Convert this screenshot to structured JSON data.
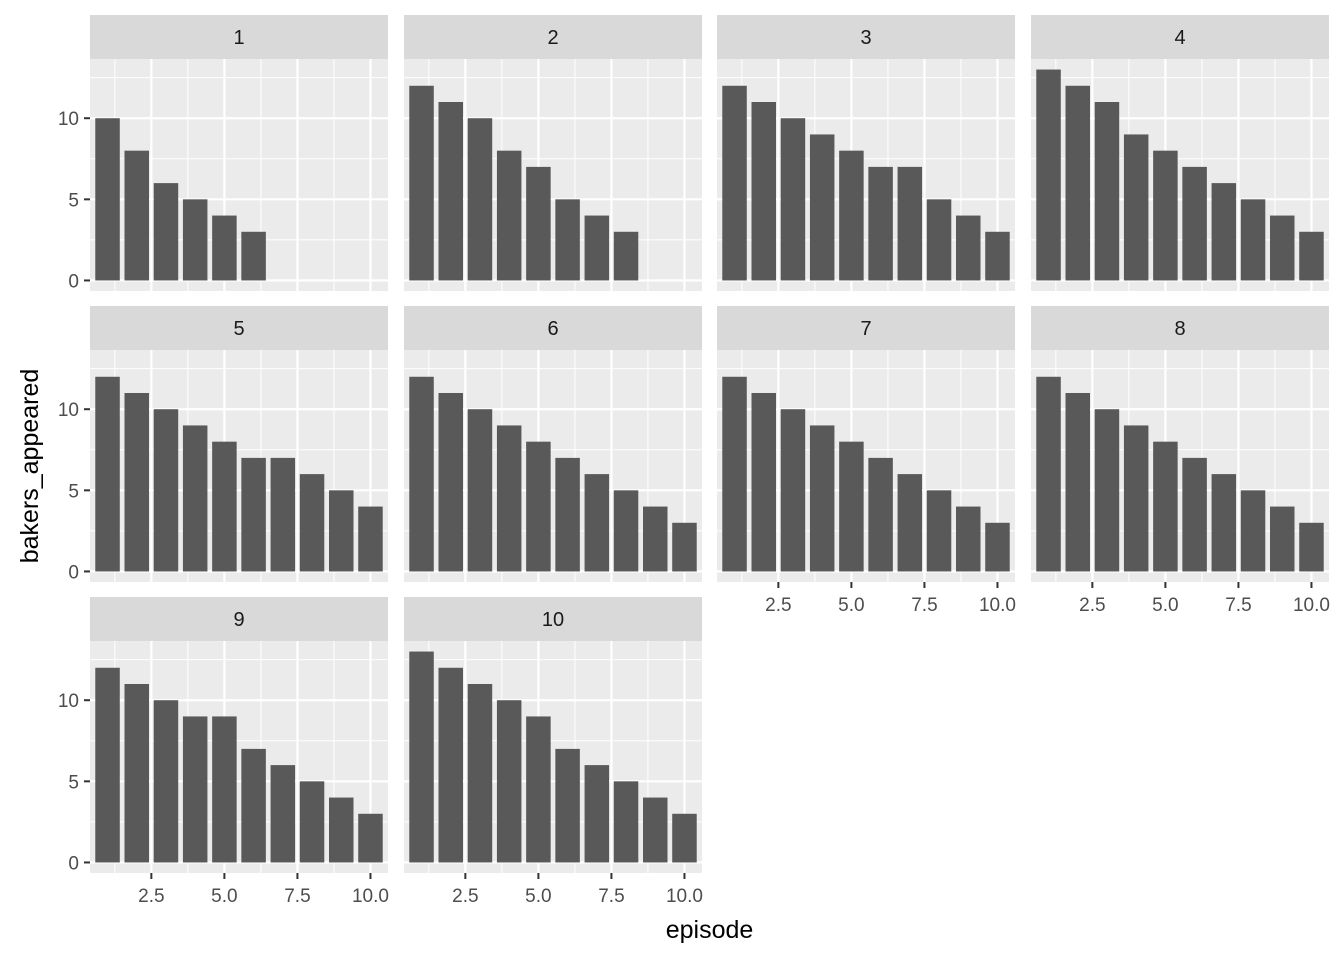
{
  "chart_data": {
    "type": "bar",
    "facet_layout": "wrap, 4 columns",
    "xlabel": "episode",
    "ylabel": "bakers_appeared",
    "xlim": [
      0.4,
      10.6
    ],
    "ylim": [
      -0.65,
      13.65
    ],
    "x_breaks": [
      2.5,
      5.0,
      7.5,
      10.0
    ],
    "x_tick_labels": [
      "2.5",
      "5.0",
      "7.5",
      "10.0"
    ],
    "y_breaks": [
      0,
      5,
      10
    ],
    "y_tick_labels": [
      "0",
      "5",
      "10"
    ],
    "grid": true,
    "bar_color": "#595959",
    "panel_background": "#EBEBEB",
    "strip_background": "#D9D9D9",
    "panels": [
      {
        "label": "1",
        "episodes": [
          1,
          2,
          3,
          4,
          5,
          6
        ],
        "values": [
          10,
          8,
          6,
          5,
          4,
          3
        ]
      },
      {
        "label": "2",
        "episodes": [
          1,
          2,
          3,
          4,
          5,
          6,
          7,
          8
        ],
        "values": [
          12,
          11,
          10,
          8,
          7,
          5,
          4,
          3
        ]
      },
      {
        "label": "3",
        "episodes": [
          1,
          2,
          3,
          4,
          5,
          6,
          7,
          8,
          9,
          10
        ],
        "values": [
          12,
          11,
          10,
          9,
          8,
          7,
          7,
          5,
          4,
          3
        ]
      },
      {
        "label": "4",
        "episodes": [
          1,
          2,
          3,
          4,
          5,
          6,
          7,
          8,
          9,
          10
        ],
        "values": [
          13,
          12,
          11,
          9,
          8,
          7,
          6,
          5,
          4,
          3
        ]
      },
      {
        "label": "5",
        "episodes": [
          1,
          2,
          3,
          4,
          5,
          6,
          7,
          8,
          9,
          10
        ],
        "values": [
          12,
          11,
          10,
          9,
          8,
          7,
          7,
          6,
          5,
          4
        ]
      },
      {
        "label": "6",
        "episodes": [
          1,
          2,
          3,
          4,
          5,
          6,
          7,
          8,
          9,
          10
        ],
        "values": [
          12,
          11,
          10,
          9,
          8,
          7,
          6,
          5,
          4,
          3
        ]
      },
      {
        "label": "7",
        "episodes": [
          1,
          2,
          3,
          4,
          5,
          6,
          7,
          8,
          9,
          10
        ],
        "values": [
          12,
          11,
          10,
          9,
          8,
          7,
          6,
          5,
          4,
          3
        ]
      },
      {
        "label": "8",
        "episodes": [
          1,
          2,
          3,
          4,
          5,
          6,
          7,
          8,
          9,
          10
        ],
        "values": [
          12,
          11,
          10,
          9,
          8,
          7,
          6,
          5,
          4,
          3
        ]
      },
      {
        "label": "9",
        "episodes": [
          1,
          2,
          3,
          4,
          5,
          6,
          7,
          8,
          9,
          10
        ],
        "values": [
          12,
          11,
          10,
          9,
          9,
          7,
          6,
          5,
          4,
          3
        ]
      },
      {
        "label": "10",
        "episodes": [
          1,
          2,
          3,
          4,
          5,
          6,
          7,
          8,
          9,
          10
        ],
        "values": [
          13,
          12,
          11,
          10,
          9,
          7,
          6,
          5,
          4,
          3
        ]
      }
    ]
  }
}
